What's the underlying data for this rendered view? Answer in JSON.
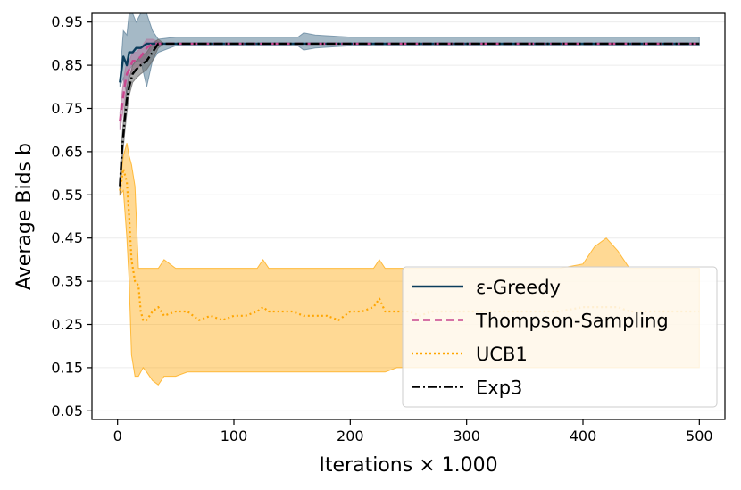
{
  "chart_data": {
    "type": "line",
    "xlabel": "Iterations × 1.000",
    "ylabel": "Average Bids b",
    "xlim": [
      -22,
      522
    ],
    "ylim": [
      0.03,
      0.97
    ],
    "xticks": [
      0,
      100,
      200,
      300,
      400,
      500
    ],
    "xtick_labels": [
      "0",
      "100",
      "200",
      "300",
      "400",
      "500"
    ],
    "yticks": [
      0.05,
      0.15,
      0.25,
      0.35,
      0.45,
      0.55,
      0.65,
      0.75,
      0.85,
      0.95
    ],
    "ytick_labels": [
      "0.05",
      "0.15",
      "0.25",
      "0.35",
      "0.45",
      "0.55",
      "0.65",
      "0.75",
      "0.85",
      "0.95"
    ],
    "grid": true,
    "legend_position": "lower-right",
    "series": [
      {
        "name": "ε-Greedy",
        "color": "#0b3d5c",
        "dash": "solid",
        "band_color": "#5b7f98",
        "x": [
          2,
          5,
          8,
          10,
          13,
          16,
          20,
          25,
          30,
          35,
          50,
          100,
          155,
          160,
          170,
          200,
          300,
          400,
          500
        ],
        "y": [
          0.81,
          0.87,
          0.85,
          0.88,
          0.88,
          0.89,
          0.89,
          0.9,
          0.9,
          0.9,
          0.9,
          0.9,
          0.9,
          0.9,
          0.9,
          0.9,
          0.9,
          0.9,
          0.9
        ],
        "lower": [
          0.8,
          0.82,
          0.78,
          0.84,
          0.85,
          0.86,
          0.86,
          0.8,
          0.86,
          0.88,
          0.895,
          0.895,
          0.895,
          0.885,
          0.89,
          0.895,
          0.895,
          0.895,
          0.895
        ],
        "upper": [
          0.82,
          0.93,
          0.92,
          0.97,
          0.97,
          0.95,
          0.97,
          0.97,
          0.93,
          0.91,
          0.915,
          0.915,
          0.915,
          0.925,
          0.92,
          0.915,
          0.915,
          0.915,
          0.915
        ]
      },
      {
        "name": "Thompson-Sampling",
        "color": "#c9478e",
        "dash": "8,5",
        "band_color": "#b07aa0",
        "x": [
          2,
          4,
          6,
          8,
          10,
          13,
          16,
          20,
          25,
          30,
          40,
          100,
          200,
          300,
          400,
          500
        ],
        "y": [
          0.72,
          0.76,
          0.8,
          0.83,
          0.84,
          0.86,
          0.86,
          0.87,
          0.89,
          0.9,
          0.9,
          0.9,
          0.9,
          0.9,
          0.9,
          0.9
        ],
        "lower": [
          0.7,
          0.73,
          0.77,
          0.8,
          0.82,
          0.84,
          0.84,
          0.85,
          0.87,
          0.89,
          0.9,
          0.9,
          0.9,
          0.9,
          0.9,
          0.9
        ],
        "upper": [
          0.74,
          0.79,
          0.83,
          0.86,
          0.86,
          0.88,
          0.88,
          0.89,
          0.91,
          0.91,
          0.9,
          0.9,
          0.9,
          0.9,
          0.9,
          0.9
        ]
      },
      {
        "name": "UCB1",
        "color": "#ffa500",
        "dash": "2,3",
        "band_color": "#ffa500",
        "x": [
          2,
          5,
          8,
          10,
          12,
          15,
          18,
          20,
          22,
          25,
          30,
          35,
          40,
          50,
          60,
          70,
          80,
          90,
          100,
          110,
          120,
          125,
          130,
          140,
          150,
          160,
          170,
          180,
          190,
          200,
          210,
          220,
          225,
          230,
          240,
          250,
          260,
          270,
          280,
          300,
          320,
          350,
          380,
          400,
          410,
          420,
          430,
          440,
          450,
          460,
          470,
          480,
          490,
          500
        ],
        "y": [
          0.56,
          0.61,
          0.58,
          0.5,
          0.4,
          0.35,
          0.34,
          0.28,
          0.26,
          0.26,
          0.28,
          0.29,
          0.27,
          0.28,
          0.28,
          0.26,
          0.27,
          0.26,
          0.27,
          0.27,
          0.28,
          0.29,
          0.28,
          0.28,
          0.28,
          0.27,
          0.27,
          0.27,
          0.26,
          0.28,
          0.28,
          0.29,
          0.31,
          0.28,
          0.28,
          0.28,
          0.27,
          0.28,
          0.28,
          0.28,
          0.28,
          0.28,
          0.28,
          0.29,
          0.29,
          0.29,
          0.29,
          0.28,
          0.28,
          0.28,
          0.28,
          0.28,
          0.28,
          0.28
        ],
        "lower": [
          0.55,
          0.56,
          0.45,
          0.35,
          0.18,
          0.13,
          0.13,
          0.14,
          0.15,
          0.14,
          0.12,
          0.11,
          0.13,
          0.13,
          0.14,
          0.14,
          0.14,
          0.14,
          0.14,
          0.14,
          0.14,
          0.14,
          0.14,
          0.14,
          0.14,
          0.14,
          0.14,
          0.14,
          0.14,
          0.14,
          0.14,
          0.14,
          0.14,
          0.14,
          0.15,
          0.15,
          0.15,
          0.15,
          0.15,
          0.15,
          0.15,
          0.15,
          0.15,
          0.15,
          0.15,
          0.15,
          0.15,
          0.15,
          0.15,
          0.15,
          0.15,
          0.15,
          0.15,
          0.15
        ],
        "upper": [
          0.57,
          0.64,
          0.67,
          0.64,
          0.62,
          0.57,
          0.38,
          0.38,
          0.38,
          0.38,
          0.38,
          0.38,
          0.4,
          0.38,
          0.38,
          0.38,
          0.38,
          0.38,
          0.38,
          0.38,
          0.38,
          0.4,
          0.38,
          0.38,
          0.38,
          0.38,
          0.38,
          0.38,
          0.38,
          0.38,
          0.38,
          0.38,
          0.4,
          0.38,
          0.38,
          0.38,
          0.38,
          0.38,
          0.38,
          0.38,
          0.38,
          0.38,
          0.38,
          0.39,
          0.43,
          0.45,
          0.42,
          0.38,
          0.38,
          0.38,
          0.38,
          0.38,
          0.38,
          0.38
        ]
      },
      {
        "name": "Exp3",
        "color": "#000000",
        "dash": "10,3,2,3",
        "band_color": "#666666",
        "x": [
          2,
          4,
          6,
          8,
          10,
          13,
          16,
          20,
          25,
          30,
          35,
          40,
          100,
          200,
          300,
          400,
          500
        ],
        "y": [
          0.57,
          0.66,
          0.72,
          0.77,
          0.8,
          0.83,
          0.84,
          0.85,
          0.86,
          0.88,
          0.9,
          0.9,
          0.9,
          0.9,
          0.9,
          0.9,
          0.9
        ],
        "lower": [
          0.55,
          0.63,
          0.69,
          0.74,
          0.78,
          0.81,
          0.82,
          0.83,
          0.84,
          0.86,
          0.89,
          0.9,
          0.9,
          0.9,
          0.9,
          0.9,
          0.9
        ],
        "upper": [
          0.59,
          0.69,
          0.75,
          0.8,
          0.82,
          0.85,
          0.86,
          0.87,
          0.88,
          0.9,
          0.91,
          0.9,
          0.9,
          0.9,
          0.9,
          0.9,
          0.9
        ]
      }
    ]
  }
}
